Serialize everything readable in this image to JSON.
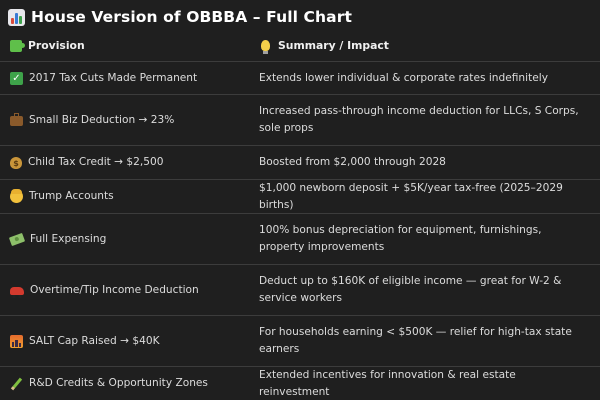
{
  "title": {
    "text": "House Version of OBBBA – Full Chart",
    "icon": "bar-chart-icon"
  },
  "table": {
    "headers": {
      "provision": "Provision",
      "provision_icon": "puzzle-piece-icon",
      "summary": "Summary / Impact",
      "summary_icon": "light-bulb-icon"
    },
    "rows": [
      {
        "icon": "check-mark-button-icon",
        "provision": "2017 Tax Cuts Made Permanent",
        "summary": "Extends lower individual & corporate rates indefinitely"
      },
      {
        "icon": "briefcase-icon",
        "provision": "Small Biz Deduction → 23%",
        "summary": "Increased pass-through income deduction for LLCs, S Corps, sole props"
      },
      {
        "icon": "money-bag-icon",
        "provision": "Child Tax Credit → $2,500",
        "summary": "Boosted from $2,000 through 2028"
      },
      {
        "icon": "baby-icon",
        "provision": "Trump Accounts",
        "summary": "$1,000 newborn deposit + $5K/year tax-free (2025–2029 births)"
      },
      {
        "icon": "money-with-wings-icon",
        "provision": "Full Expensing",
        "summary": "100% bonus depreciation for equipment, furnishings, property improvements"
      },
      {
        "icon": "car-icon",
        "provision": "Overtime/Tip Income Deduction",
        "summary": "Deduct up to $160K of eligible income — great for W-2 & service workers"
      },
      {
        "icon": "cityscape-icon",
        "provision": "SALT Cap Raised → $40K",
        "summary": "For households earning < $500K — relief for high-tax state earners"
      },
      {
        "icon": "pencil-icon",
        "provision": "R&D Credits & Opportunity Zones",
        "summary": "Extended incentives for innovation & real estate reinvestment"
      }
    ]
  }
}
